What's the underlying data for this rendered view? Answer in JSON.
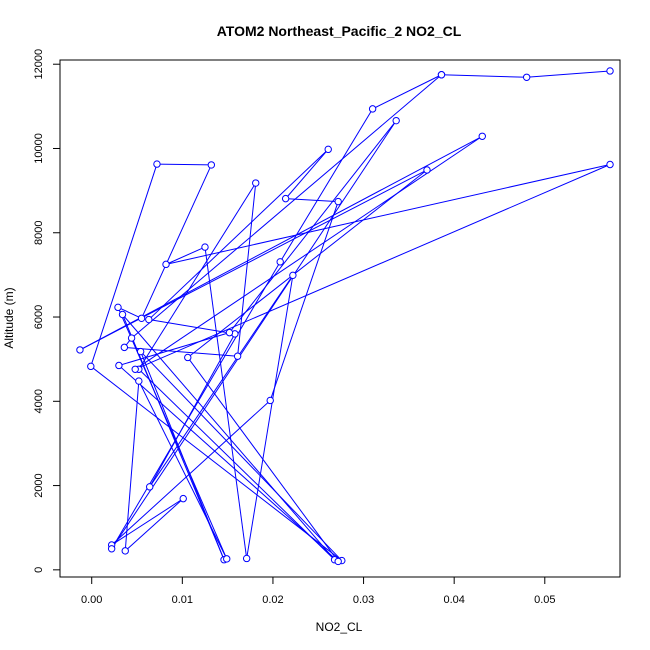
{
  "chart_data": {
    "type": "line",
    "title": "ATOM2 Northeast_Pacific_2 NO2_CL",
    "xlabel": "NO2_CL",
    "ylabel": "Altitude (m)",
    "xlim": [
      -0.0035,
      0.0583
    ],
    "ylim": [
      -170,
      12100
    ],
    "x_ticks": [
      0.0,
      0.01,
      0.02,
      0.03,
      0.04,
      0.05
    ],
    "x_tick_labels": [
      "0.00",
      "0.01",
      "0.02",
      "0.03",
      "0.04",
      "0.05"
    ],
    "y_ticks": [
      0,
      2000,
      4000,
      6000,
      8000,
      10000,
      12000
    ],
    "y_tick_labels": [
      "0",
      "2000",
      "4000",
      "6000",
      "8000",
      "10000",
      "12000"
    ],
    "grid": false,
    "legend": "none",
    "series_color": "#0000ff",
    "points": [
      {
        "x": 0.0572,
        "y": 11840
      },
      {
        "x": 0.048,
        "y": 11690
      },
      {
        "x": 0.0386,
        "y": 11750
      },
      {
        "x": 0.0044,
        "y": 5500
      },
      {
        "x": 0.0036,
        "y": 5280
      },
      {
        "x": 0.0161,
        "y": 5070
      },
      {
        "x": 0.0181,
        "y": 9180
      },
      {
        "x": 0.0052,
        "y": 4760
      },
      {
        "x": 0.0268,
        "y": 240
      },
      {
        "x": 0.0034,
        "y": 6060
      },
      {
        "x": 0.0146,
        "y": 240
      },
      {
        "x": 0.0054,
        "y": 5180
      },
      {
        "x": 0.0276,
        "y": 220
      },
      {
        "x": -0.0001,
        "y": 4830
      },
      {
        "x": 0.0072,
        "y": 9630
      },
      {
        "x": 0.0132,
        "y": 9610
      },
      {
        "x": 0.0055,
        "y": 5970
      },
      {
        "x": 0.0029,
        "y": 6230
      },
      {
        "x": 0.0149,
        "y": 260
      },
      {
        "x": 0.0052,
        "y": 4480
      },
      {
        "x": 0.0037,
        "y": 450
      },
      {
        "x": 0.0101,
        "y": 1690
      },
      {
        "x": 0.0022,
        "y": 590
      },
      {
        "x": 0.0197,
        "y": 4020
      },
      {
        "x": 0.0272,
        "y": 8740
      },
      {
        "x": 0.0214,
        "y": 8810
      },
      {
        "x": 0.0261,
        "y": 9980
      },
      {
        "x": 0.0063,
        "y": 5940
      },
      {
        "x": 0.0158,
        "y": 5600
      },
      {
        "x": 0.0064,
        "y": 1970
      },
      {
        "x": 0.0222,
        "y": 6990
      },
      {
        "x": 0.0171,
        "y": 270
      },
      {
        "x": 0.0125,
        "y": 7660
      },
      {
        "x": 0.0082,
        "y": 7250
      },
      {
        "x": 0.0572,
        "y": 9620
      },
      {
        "x": 0.0048,
        "y": 4760
      },
      {
        "x": 0.0431,
        "y": 10290
      },
      {
        "x": -0.0013,
        "y": 5220
      },
      {
        "x": 0.037,
        "y": 9490
      },
      {
        "x": 0.0106,
        "y": 5040
      },
      {
        "x": 0.0272,
        "y": 200
      },
      {
        "x": 0.003,
        "y": 4850
      },
      {
        "x": 0.0152,
        "y": 5630
      },
      {
        "x": 0.0336,
        "y": 10660
      },
      {
        "x": 0.0022,
        "y": 500
      },
      {
        "x": 0.0208,
        "y": 7310
      },
      {
        "x": 0.031,
        "y": 10940
      },
      {
        "x": 0.0386,
        "y": 11750
      }
    ]
  }
}
